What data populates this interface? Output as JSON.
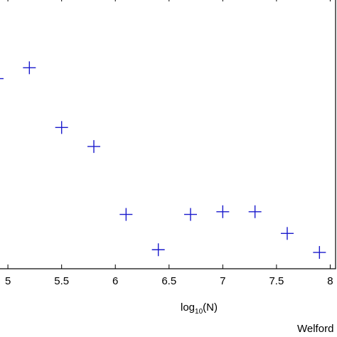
{
  "chart_data": {
    "type": "scatter",
    "xlabel_base": "log",
    "xlabel_sub": "10",
    "xlabel_tail": "(N)",
    "ylabel": "",
    "xlim": [
      4.9,
      8.05
    ],
    "ylim": [
      0,
      1
    ],
    "x_ticks": [
      "5",
      "5.5",
      "6",
      "6.5",
      "7",
      "7.5",
      "8"
    ],
    "x_tick_values": [
      5,
      5.5,
      6,
      6.5,
      7,
      7.5,
      8
    ],
    "marker": "plus",
    "marker_color": "#1a1acc",
    "grid": false,
    "series": [
      {
        "x": [
          4.9,
          5.2,
          5.5,
          5.8,
          6.1,
          6.4,
          6.7,
          7.0,
          7.3,
          7.6,
          7.9
        ],
        "y": [
          0.7,
          0.74,
          0.52,
          0.45,
          0.2,
          0.07,
          0.2,
          0.21,
          0.21,
          0.13,
          0.06
        ]
      }
    ],
    "caption": "Welford"
  }
}
